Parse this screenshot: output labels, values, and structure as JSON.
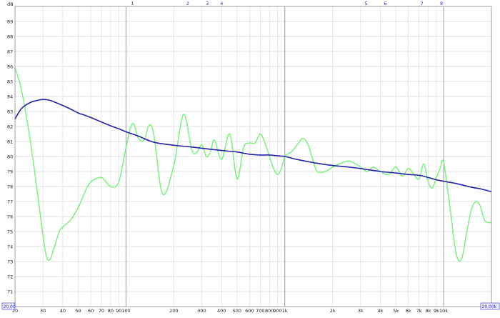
{
  "chart_data": {
    "type": "line",
    "title": "",
    "xlabel": "",
    "ylabel": "",
    "y_unit": "dB",
    "x_scale": "log",
    "xlim": [
      20,
      20000
    ],
    "ylim": [
      70,
      90
    ],
    "grid": true,
    "x_tick_labels": [
      {
        "value": 20,
        "label": "20"
      },
      {
        "value": 30,
        "label": "30"
      },
      {
        "value": 40,
        "label": "40"
      },
      {
        "value": 50,
        "label": "50"
      },
      {
        "value": 60,
        "label": "60"
      },
      {
        "value": 70,
        "label": "70"
      },
      {
        "value": 80,
        "label": "80"
      },
      {
        "value": 90,
        "label": "90"
      },
      {
        "value": 100,
        "label": "100"
      },
      {
        "value": 200,
        "label": "200"
      },
      {
        "value": 300,
        "label": "300"
      },
      {
        "value": 400,
        "label": "400"
      },
      {
        "value": 500,
        "label": "500"
      },
      {
        "value": 600,
        "label": "600"
      },
      {
        "value": 700,
        "label": "700"
      },
      {
        "value": 800,
        "label": "800"
      },
      {
        "value": 900,
        "label": "900"
      },
      {
        "value": 1000,
        "label": "1k"
      },
      {
        "value": 2000,
        "label": "2k"
      },
      {
        "value": 3000,
        "label": "3k"
      },
      {
        "value": 4000,
        "label": "4k"
      },
      {
        "value": 5000,
        "label": "5k"
      },
      {
        "value": 6000,
        "label": "6k"
      },
      {
        "value": 7000,
        "label": "7k"
      },
      {
        "value": 8000,
        "label": "8k"
      },
      {
        "value": 9000,
        "label": "9k"
      },
      {
        "value": 10000,
        "label": "10k"
      }
    ],
    "y_tick_labels": [
      {
        "value": 71,
        "label": "71"
      },
      {
        "value": 72,
        "label": "72"
      },
      {
        "value": 73,
        "label": "73"
      },
      {
        "value": 74,
        "label": "74"
      },
      {
        "value": 75,
        "label": "75"
      },
      {
        "value": 76,
        "label": "76"
      },
      {
        "value": 77,
        "label": "77"
      },
      {
        "value": 78,
        "label": "78"
      },
      {
        "value": 79,
        "label": "79"
      },
      {
        "value": 80,
        "label": "80"
      },
      {
        "value": 81,
        "label": "81"
      },
      {
        "value": 82,
        "label": "82"
      },
      {
        "value": 83,
        "label": "83"
      },
      {
        "value": 84,
        "label": "84"
      },
      {
        "value": 85,
        "label": "85"
      },
      {
        "value": 86,
        "label": "86"
      },
      {
        "value": 87,
        "label": "87"
      },
      {
        "value": 88,
        "label": "88"
      },
      {
        "value": 89,
        "label": "89"
      }
    ],
    "markers": [
      {
        "label": "1",
        "x": 110
      },
      {
        "label": "2",
        "x": 245
      },
      {
        "label": "3",
        "x": 325
      },
      {
        "label": "4",
        "x": 400
      },
      {
        "label": "5",
        "x": 3250
      },
      {
        "label": "6",
        "x": 4300
      },
      {
        "label": "7",
        "x": 7300
      },
      {
        "label": "8",
        "x": 9700
      }
    ],
    "x_range_labels": {
      "start": "20.00",
      "end": "20.00k"
    },
    "series": [
      {
        "color": "#7ef07e",
        "x": [
          20,
          22,
          25,
          28,
          31,
          33,
          35,
          38,
          40,
          45,
          50,
          55,
          60,
          70,
          80,
          90,
          100,
          110,
          120,
          130,
          140,
          150,
          170,
          200,
          230,
          260,
          280,
          300,
          320,
          340,
          360,
          400,
          450,
          500,
          550,
          600,
          650,
          700,
          750,
          800,
          850,
          900,
          950,
          1000,
          1100,
          1200,
          1300,
          1400,
          1500,
          1600,
          1800,
          2000,
          2200,
          2500,
          2800,
          3000,
          3300,
          3600,
          4000,
          4500,
          5000,
          5500,
          6000,
          6500,
          7000,
          7500,
          8000,
          8500,
          9000,
          9500,
          10000,
          11000,
          12000,
          13000,
          14000,
          15000,
          16000,
          17000,
          18000,
          19000,
          20000
        ],
        "y": [
          85.9,
          84.4,
          81.0,
          77.2,
          73.7,
          73.1,
          73.8,
          75.0,
          75.3,
          75.8,
          76.6,
          77.6,
          78.3,
          78.6,
          78.0,
          78.3,
          80.6,
          82.2,
          81.2,
          81.1,
          82.1,
          81.4,
          77.5,
          79.4,
          82.8,
          80.4,
          80.3,
          80.8,
          80.0,
          80.3,
          81.1,
          79.8,
          81.5,
          78.5,
          80.6,
          80.9,
          80.9,
          81.5,
          80.9,
          80.0,
          79.2,
          78.8,
          79.2,
          80.0,
          80.3,
          80.8,
          81.2,
          80.8,
          79.8,
          79.0,
          79.0,
          79.3,
          79.5,
          79.7,
          79.5,
          79.3,
          79.0,
          79.3,
          79.0,
          78.8,
          79.3,
          78.7,
          79.2,
          78.8,
          78.5,
          79.5,
          78.3,
          77.9,
          78.6,
          79.2,
          79.6,
          76.5,
          73.5,
          73.2,
          75.0,
          76.5,
          77.0,
          76.7,
          75.8,
          75.6,
          75.6
        ]
      },
      {
        "color": "#2222aa",
        "x": [
          20,
          22,
          25,
          28,
          30,
          33,
          36,
          40,
          45,
          50,
          55,
          60,
          70,
          80,
          90,
          100,
          120,
          150,
          200,
          250,
          300,
          400,
          500,
          600,
          700,
          800,
          900,
          1000,
          1200,
          1500,
          2000,
          2500,
          3000,
          4000,
          5000,
          6000,
          7000,
          8000,
          9000,
          10000,
          12000,
          15000,
          17000,
          20000
        ],
        "y": [
          82.5,
          83.2,
          83.6,
          83.75,
          83.8,
          83.75,
          83.6,
          83.4,
          83.15,
          82.9,
          82.75,
          82.6,
          82.3,
          82.05,
          81.85,
          81.65,
          81.35,
          80.95,
          80.75,
          80.65,
          80.55,
          80.4,
          80.3,
          80.15,
          80.1,
          80.1,
          80.05,
          80.0,
          79.8,
          79.6,
          79.4,
          79.3,
          79.2,
          79.0,
          78.9,
          78.8,
          78.75,
          78.6,
          78.45,
          78.35,
          78.2,
          77.95,
          77.85,
          77.65
        ]
      }
    ]
  }
}
